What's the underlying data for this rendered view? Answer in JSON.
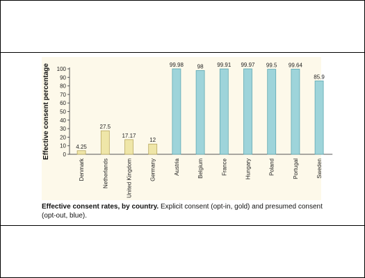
{
  "caption": {
    "bold": "Effective consent rates, by country.",
    "rest": " Explicit consent (opt-in, gold) and presumed consent (opt-out, blue)."
  },
  "chart_data": {
    "type": "bar",
    "ylabel": "Effective consent percentage",
    "xlabel": "",
    "ylim": [
      0,
      100
    ],
    "yticks": [
      0,
      10,
      20,
      30,
      40,
      50,
      60,
      70,
      80,
      90,
      100
    ],
    "categories": [
      "Denmark",
      "Netherlands",
      "United Kingdom",
      "Germany",
      "Austria",
      "Belgium",
      "France",
      "Hungary",
      "Poland",
      "Portugal",
      "Sweden"
    ],
    "values": [
      4.25,
      27.5,
      17.17,
      12,
      99.98,
      98,
      99.91,
      99.97,
      99.5,
      99.64,
      85.9
    ],
    "value_labels": [
      "4.25",
      "27.5",
      "17.17",
      "12",
      "99.98",
      "98",
      "99.91",
      "99.97",
      "99.5",
      "99.64",
      "85.9"
    ],
    "group": [
      "opt-in",
      "opt-in",
      "opt-in",
      "opt-in",
      "opt-out",
      "opt-out",
      "opt-out",
      "opt-out",
      "opt-out",
      "opt-out",
      "opt-out"
    ],
    "colors": {
      "opt-in": "#efe6a8",
      "opt-in-stroke": "#b8a860",
      "opt-out": "#9ed4da",
      "opt-out-stroke": "#5fa8b2",
      "axis": "#555555"
    },
    "grid": false,
    "legend": "none"
  }
}
